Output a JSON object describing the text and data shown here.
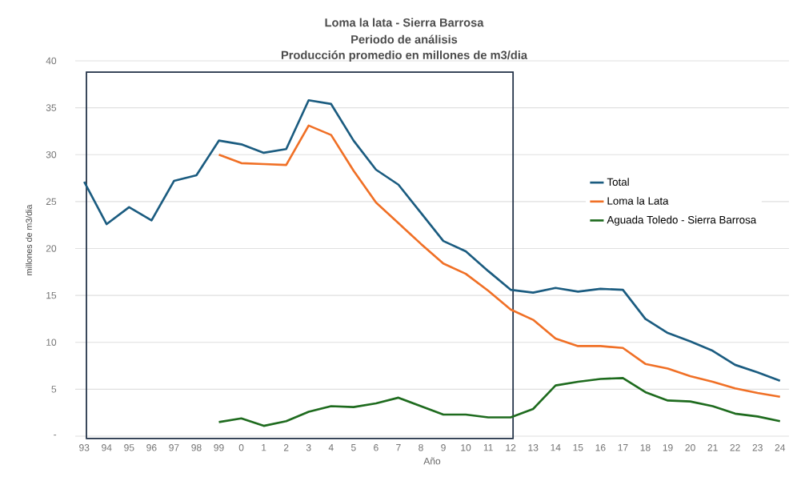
{
  "chart_data": {
    "type": "line",
    "title": "Loma la lata - Sierra Barrosa",
    "subtitle": "Periodo de análisis",
    "annotations": [
      "Producción promedio en millones de m3/dia"
    ],
    "xlabel": "Año",
    "ylabel": "millones de m3/dia",
    "categories": [
      "93",
      "94",
      "95",
      "96",
      "97",
      "98",
      "99",
      "0",
      "1",
      "2",
      "3",
      "4",
      "5",
      "6",
      "7",
      "8",
      "9",
      "10",
      "11",
      "12",
      "13",
      "14",
      "15",
      "16",
      "17",
      "18",
      "19",
      "20",
      "21",
      "22",
      "23",
      "24"
    ],
    "series": [
      {
        "name": "Total",
        "color": "#1b5c80",
        "values": [
          27.1,
          22.6,
          24.4,
          23.0,
          27.2,
          27.8,
          31.5,
          31.1,
          30.2,
          30.6,
          35.8,
          35.4,
          31.5,
          28.4,
          26.8,
          23.8,
          20.8,
          19.7,
          17.6,
          15.6,
          15.3,
          15.8,
          15.4,
          15.7,
          15.6,
          12.5,
          11.0,
          10.1,
          9.1,
          7.6,
          6.8,
          5.9
        ]
      },
      {
        "name": "Loma la Lata",
        "color": "#f07026",
        "values": [
          null,
          null,
          null,
          null,
          null,
          null,
          30.0,
          29.1,
          29.0,
          28.9,
          33.1,
          32.1,
          28.3,
          24.9,
          22.7,
          20.5,
          18.4,
          17.3,
          15.5,
          13.5,
          12.4,
          10.4,
          9.6,
          9.6,
          9.4,
          7.7,
          7.2,
          6.4,
          5.8,
          5.1,
          4.6,
          4.2
        ]
      },
      {
        "name": "Aguada Toledo - Sierra Barrosa",
        "color": "#1e6b1e",
        "values": [
          null,
          null,
          null,
          null,
          null,
          null,
          1.5,
          1.9,
          1.1,
          1.6,
          2.6,
          3.2,
          3.1,
          3.5,
          4.1,
          3.2,
          2.3,
          2.3,
          2.0,
          2.0,
          2.9,
          5.4,
          5.8,
          6.1,
          6.2,
          4.7,
          3.8,
          3.7,
          3.2,
          2.4,
          2.1,
          1.6
        ]
      }
    ],
    "ylim": [
      0,
      40
    ],
    "yticks": [
      {
        "value": 0,
        "label": "-"
      },
      5,
      10,
      15,
      20,
      25,
      30,
      35,
      40
    ],
    "grid": "y",
    "legend": "right"
  }
}
